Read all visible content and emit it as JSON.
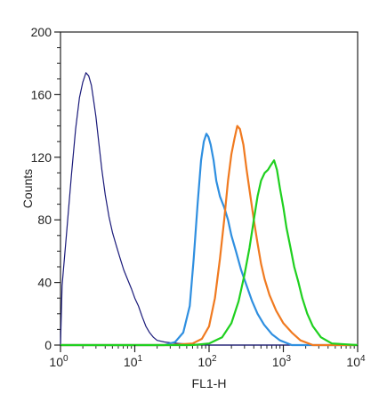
{
  "chart_data": {
    "type": "line",
    "title": "",
    "xlabel": "FL1-H",
    "ylabel": "Counts",
    "xscale": "log",
    "xlim": [
      1,
      10000
    ],
    "ylim": [
      0,
      200
    ],
    "grid": false,
    "x_ticks": [
      {
        "base": "10",
        "exp": "0",
        "value": 1
      },
      {
        "base": "10",
        "exp": "1",
        "value": 10
      },
      {
        "base": "10",
        "exp": "2",
        "value": 100
      },
      {
        "base": "10",
        "exp": "3",
        "value": 1000
      },
      {
        "base": "10",
        "exp": "4",
        "value": 10000
      }
    ],
    "y_ticks": [
      0,
      40,
      80,
      120,
      160,
      200
    ],
    "series": [
      {
        "color": "#1a1a7a",
        "x": [
          1.0,
          1.05,
          1.2,
          1.4,
          1.6,
          1.8,
          2.0,
          2.2,
          2.4,
          2.6,
          2.8,
          3.0,
          3.3,
          3.6,
          4.0,
          4.5,
          5.0,
          5.6,
          6.3,
          7.1,
          8.0,
          9.0,
          10.0,
          11.2,
          12.6,
          14.1,
          15.8,
          17.8,
          20.0,
          25.0,
          30.0,
          40.0,
          60.0,
          100.0,
          1000.0,
          10000.0
        ],
        "y": [
          0,
          38,
          70,
          108,
          138,
          158,
          168,
          174,
          172,
          166,
          156,
          146,
          128,
          112,
          96,
          82,
          72,
          64,
          56,
          48,
          42,
          36,
          30,
          25,
          18,
          12,
          8,
          5,
          3,
          2,
          1.5,
          1,
          0.5,
          0,
          0,
          0
        ]
      },
      {
        "color": "#2f8fe0",
        "x": [
          1.0,
          10.0,
          25.0,
          35.0,
          45.0,
          55.0,
          62.0,
          70.0,
          78.0,
          85.0,
          92.0,
          98.0,
          105.0,
          115.0,
          125.0,
          140.0,
          160.0,
          180.0,
          200.0,
          230.0,
          270.0,
          320.0,
          380.0,
          450.0,
          550.0,
          700.0,
          900.0,
          1300.0,
          10000.0
        ],
        "y": [
          0,
          0,
          0,
          2,
          8,
          25,
          55,
          90,
          118,
          130,
          135,
          133,
          128,
          118,
          105,
          95,
          88,
          80,
          70,
          60,
          48,
          38,
          28,
          20,
          13,
          7,
          3,
          0,
          0
        ]
      },
      {
        "color": "#f07a20",
        "x": [
          1.0,
          30.0,
          60.0,
          80.0,
          100.0,
          120.0,
          140.0,
          160.0,
          180.0,
          200.0,
          220.0,
          240.0,
          260.0,
          290.0,
          320.0,
          360.0,
          400.0,
          450.0,
          500.0,
          560.0,
          650.0,
          800.0,
          1000.0,
          1300.0,
          1700.0,
          2500.0,
          10000.0
        ],
        "y": [
          0,
          0,
          1,
          4,
          12,
          30,
          55,
          80,
          105,
          122,
          132,
          140,
          138,
          128,
          112,
          95,
          80,
          65,
          52,
          42,
          32,
          22,
          14,
          8,
          3,
          0,
          0
        ]
      },
      {
        "color": "#1fd01f",
        "x": [
          1.0,
          60.0,
          100.0,
          150.0,
          200.0,
          250.0,
          300.0,
          350.0,
          400.0,
          450.0,
          500.0,
          560.0,
          620.0,
          680.0,
          750.0,
          820.0,
          900.0,
          1000.0,
          1100.0,
          1250.0,
          1400.0,
          1600.0,
          1800.0,
          2100.0,
          2500.0,
          3200.0,
          4500.0,
          10000.0
        ],
        "y": [
          0,
          0,
          1,
          5,
          14,
          28,
          45,
          62,
          80,
          95,
          105,
          110,
          112,
          115,
          118,
          112,
          100,
          88,
          75,
          62,
          50,
          40,
          30,
          20,
          12,
          5,
          1,
          0
        ]
      }
    ]
  }
}
